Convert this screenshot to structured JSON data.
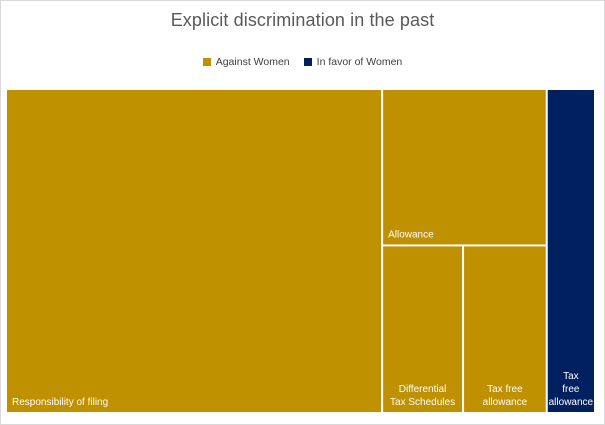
{
  "chart_data": {
    "type": "treemap",
    "title": "Explicit discrimination in the past",
    "legend_placement": "top",
    "series": [
      {
        "name": "Against Women",
        "color": "#bf9000"
      },
      {
        "name": "In favor of Women",
        "color": "#002060"
      }
    ],
    "items": [
      {
        "label": "Responsibility of filing",
        "group": "Against Women",
        "value": 53
      },
      {
        "label": "Allowance",
        "group": "Against Women",
        "value": 11.2
      },
      {
        "label": "Differential Tax Schedules",
        "group": "Against Women",
        "value": 5.9
      },
      {
        "label": "Tax free allowance",
        "group": "Against Women",
        "value": 6.1
      },
      {
        "label": "Tax free allowance",
        "group": "In favor of Women",
        "value": 6.8
      }
    ]
  }
}
